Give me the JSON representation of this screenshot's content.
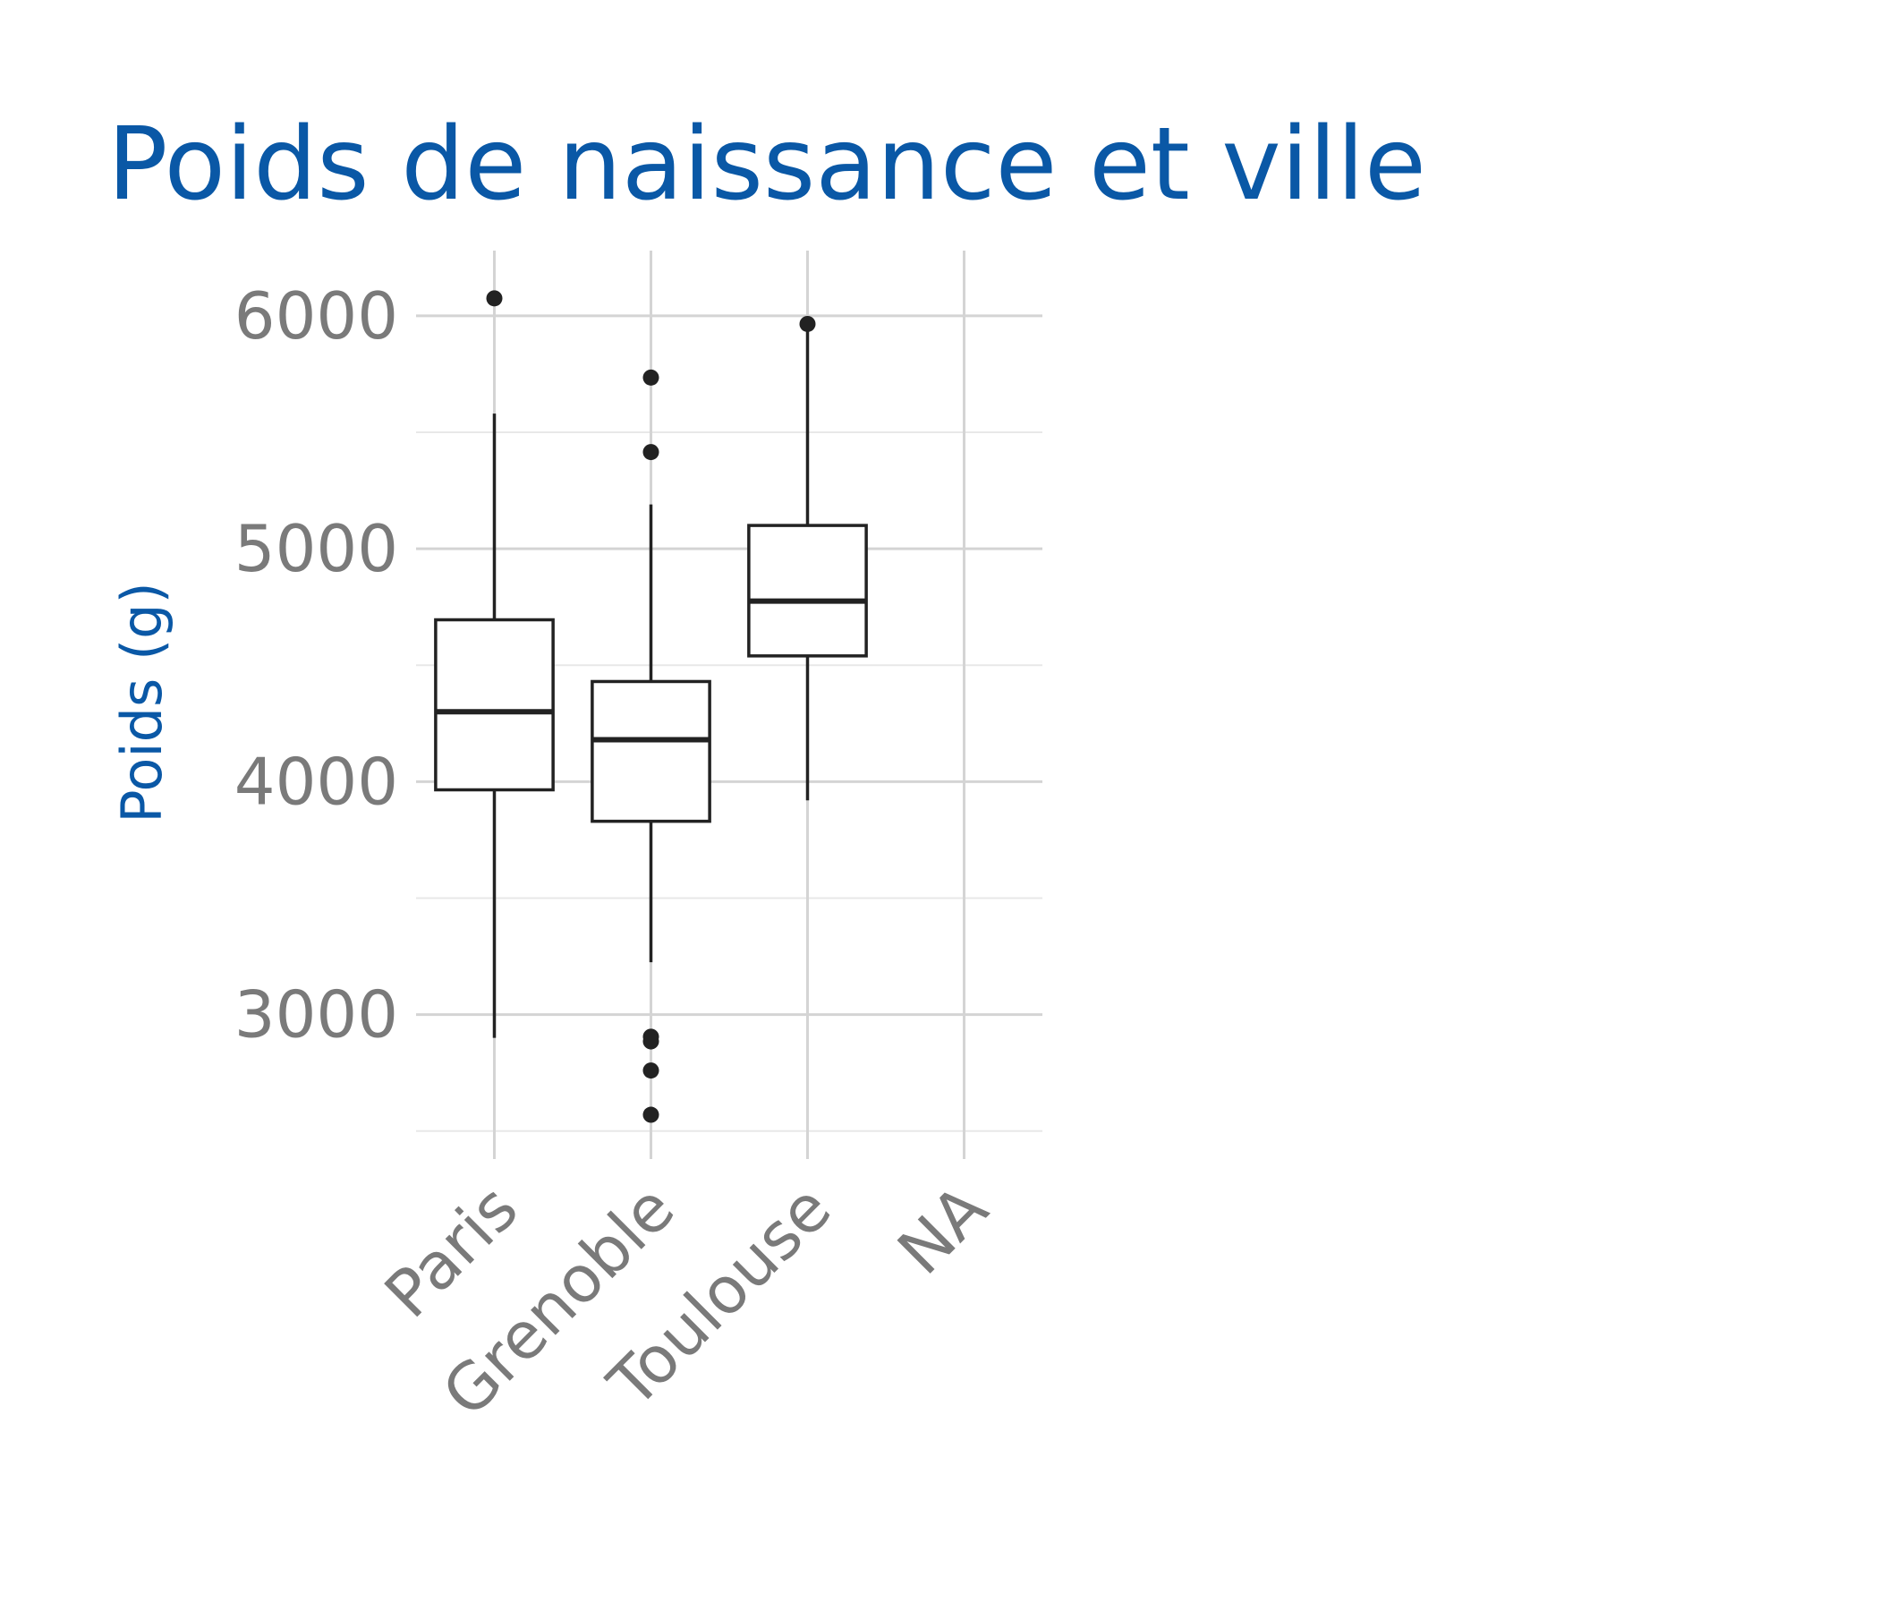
{
  "chart_data": {
    "type": "boxplot",
    "title": "Poids de naissance et ville",
    "xlabel": "",
    "ylabel": "Poids (g)",
    "ylim": [
      2380,
      6280
    ],
    "y_ticks": [
      3000,
      4000,
      5000,
      6000
    ],
    "y_minor_ticks": [
      2500,
      3500,
      4500,
      5500
    ],
    "grid": true,
    "categories": [
      "Paris",
      "Grenoble",
      "Toulouse",
      "NA"
    ],
    "boxes": [
      {
        "category": "Paris",
        "whisker_low": 2900,
        "q1": 3965,
        "median": 4300,
        "q3": 4695,
        "whisker_high": 5580,
        "outliers": [
          6075
        ]
      },
      {
        "category": "Grenoble",
        "whisker_low": 3225,
        "q1": 3830,
        "median": 4180,
        "q3": 4430,
        "whisker_high": 5190,
        "outliers": [
          5735,
          5415,
          2905,
          2885,
          2760,
          2570
        ]
      },
      {
        "category": "Toulouse",
        "whisker_low": 3920,
        "q1": 4540,
        "median": 4775,
        "q3": 5100,
        "whisker_high": 5965,
        "outliers": [
          5965
        ]
      },
      {
        "category": "NA",
        "whisker_low": null,
        "q1": null,
        "median": null,
        "q3": null,
        "whisker_high": null,
        "outliers": []
      }
    ]
  }
}
